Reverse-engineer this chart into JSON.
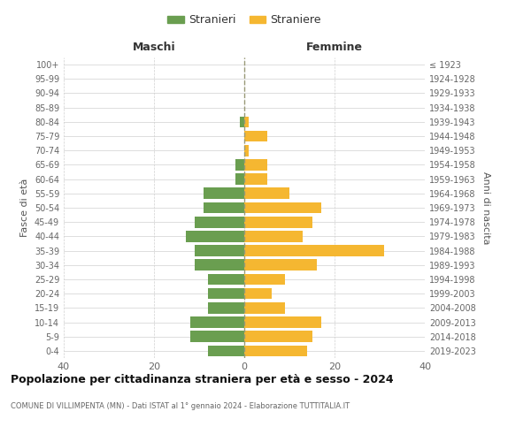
{
  "age_groups": [
    "0-4",
    "5-9",
    "10-14",
    "15-19",
    "20-24",
    "25-29",
    "30-34",
    "35-39",
    "40-44",
    "45-49",
    "50-54",
    "55-59",
    "60-64",
    "65-69",
    "70-74",
    "75-79",
    "80-84",
    "85-89",
    "90-94",
    "95-99",
    "100+"
  ],
  "birth_years": [
    "2019-2023",
    "2014-2018",
    "2009-2013",
    "2004-2008",
    "1999-2003",
    "1994-1998",
    "1989-1993",
    "1984-1988",
    "1979-1983",
    "1974-1978",
    "1969-1973",
    "1964-1968",
    "1959-1963",
    "1954-1958",
    "1949-1953",
    "1944-1948",
    "1939-1943",
    "1934-1938",
    "1929-1933",
    "1924-1928",
    "≤ 1923"
  ],
  "males": [
    8,
    12,
    12,
    8,
    8,
    8,
    11,
    11,
    13,
    11,
    9,
    9,
    2,
    2,
    0,
    0,
    1,
    0,
    0,
    0,
    0
  ],
  "females": [
    14,
    15,
    17,
    9,
    6,
    9,
    16,
    31,
    13,
    15,
    17,
    10,
    5,
    5,
    1,
    5,
    1,
    0,
    0,
    0,
    0
  ],
  "male_color": "#6a9e50",
  "female_color": "#f5b731",
  "title": "Popolazione per cittadinanza straniera per età e sesso - 2024",
  "subtitle": "COMUNE DI VILLIMPENTA (MN) - Dati ISTAT al 1° gennaio 2024 - Elaborazione TUTTITALIA.IT",
  "ylabel_left": "Fasce di età",
  "ylabel_right": "Anni di nascita",
  "label_maschi": "Maschi",
  "label_femmine": "Femmine",
  "legend_male": "Stranieri",
  "legend_female": "Straniere",
  "xlim": 40,
  "bg_color": "#ffffff",
  "grid_color": "#d0d0d0",
  "bar_height": 0.78
}
